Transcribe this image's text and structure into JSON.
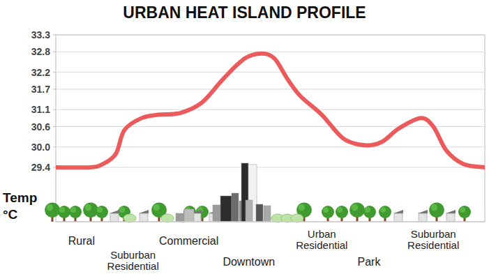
{
  "chart_data": {
    "type": "line",
    "title": "URBAN HEAT ISLAND PROFILE",
    "ylabel": "Temp °C",
    "x": [
      0,
      8,
      11,
      14,
      16,
      20,
      24,
      29,
      34,
      39,
      44,
      48,
      51,
      54,
      57,
      62,
      67,
      72,
      76,
      80,
      85,
      88,
      91,
      95,
      100
    ],
    "values": [
      29.4,
      29.4,
      29.5,
      29.8,
      30.5,
      30.85,
      30.95,
      31.0,
      31.3,
      32.0,
      32.6,
      32.75,
      32.6,
      32.0,
      31.5,
      30.95,
      30.25,
      30.05,
      30.15,
      30.55,
      30.85,
      30.6,
      29.9,
      29.5,
      29.4
    ],
    "color": "#ec5b5b",
    "xlim": [
      0,
      100
    ],
    "ylim": [
      27.8,
      33.3
    ],
    "yticks": [
      29.4,
      {
        "value": 30,
        "label": "30.0"
      },
      30.6,
      31.1,
      31.7,
      32.2,
      32.8,
      33.3
    ],
    "grid": true,
    "tick_labels": "y",
    "zones": [
      {
        "label": "Rural",
        "x": 6
      },
      {
        "label": "Suburban Residential",
        "x": 18
      },
      {
        "label": "Commercial",
        "x": 31
      },
      {
        "label": "Downtown",
        "x": 45
      },
      {
        "label": "Urban Residential",
        "x": 62
      },
      {
        "label": "Park",
        "x": 73
      },
      {
        "label": "Suburban Residential",
        "x": 88
      }
    ]
  }
}
